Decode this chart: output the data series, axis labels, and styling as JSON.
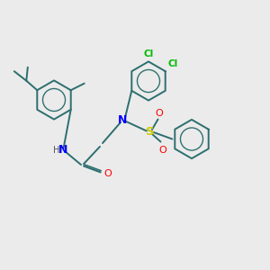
{
  "bg_color": "#ebebeb",
  "bond_color": "#2d6e6e",
  "n_color": "#0000ff",
  "o_color": "#ff0000",
  "s_color": "#cccc00",
  "cl_color": "#00bb00",
  "h_color": "#555555",
  "lw": 1.4,
  "ring_r": 0.72,
  "xlim": [
    0,
    10
  ],
  "ylim": [
    0,
    10
  ]
}
